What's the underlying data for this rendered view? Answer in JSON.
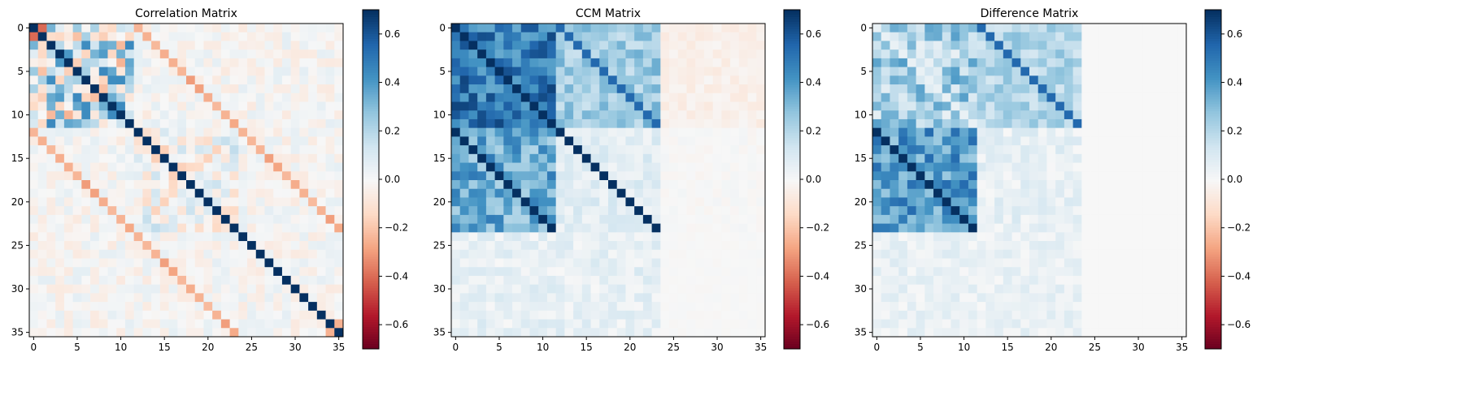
{
  "chart_data": [
    {
      "type": "heatmap",
      "title": "Correlation Matrix",
      "size": 36,
      "xticks": [
        "0",
        "5",
        "10",
        "15",
        "20",
        "25",
        "30",
        "35"
      ],
      "yticks": [
        "0",
        "5",
        "10",
        "15",
        "20",
        "25",
        "30",
        "35"
      ],
      "colormap": "RdBu",
      "vmin": -0.7,
      "vmax": 0.7,
      "colorbar_ticks": [
        "0.6",
        "0.4",
        "0.2",
        "0.0",
        "−0.2",
        "−0.4",
        "−0.6"
      ],
      "structure": "unit diagonal; strong positive entries near the diagonal in rows 0-11; block-offset diagonals at ±12 (weak negative, ~-0.25); small noise elsewhere",
      "values_description": "36x36 correlation matrix, diagonal = 0.7 (colour-capped), off-diagonal mostly within ±0.2"
    },
    {
      "type": "heatmap",
      "title": "CCM Matrix",
      "size": 36,
      "xticks": [
        "0",
        "5",
        "10",
        "15",
        "20",
        "25",
        "30",
        "35"
      ],
      "yticks": [
        "0",
        "5",
        "10",
        "15",
        "20",
        "25",
        "30",
        "35"
      ],
      "colormap": "RdBu",
      "vmin": -0.7,
      "vmax": 0.7,
      "colorbar_ticks": [
        "0.6",
        "0.4",
        "0.2",
        "0.0",
        "−0.2",
        "−0.4",
        "−0.6"
      ],
      "structure": "rows/cols 0-11 strongly positive (0.4-0.6); rows 12-23 x cols 0-23 moderately positive (0.15-0.4); rows 0-11 x cols 24-35 slightly negative (~-0.05); rows 24-35 weakly positive in cols 0-23 (~0.05-0.15); lower-right block ~0"
    },
    {
      "type": "heatmap",
      "title": "Difference Matrix",
      "size": 36,
      "xticks": [
        "0",
        "5",
        "10",
        "15",
        "20",
        "25",
        "30",
        "35"
      ],
      "yticks": [
        "0",
        "5",
        "10",
        "15",
        "20",
        "25",
        "30",
        "35"
      ],
      "colormap": "RdBu",
      "vmin": -0.7,
      "vmax": 0.7,
      "colorbar_ticks": [
        "0.6",
        "0.4",
        "0.2",
        "0.0",
        "−0.2",
        "−0.4",
        "−0.6"
      ],
      "structure": "CCM minus correlation magnitude; rows 0-11 x cols 0-23 positive (0.1-0.4) with strong off-diagonal at +12; rows 12-23 x cols 0-11 positive (0.3-0.6) with strong diagonal at -12; rows 24-35 weak (~0.05); right half ~0"
    }
  ]
}
